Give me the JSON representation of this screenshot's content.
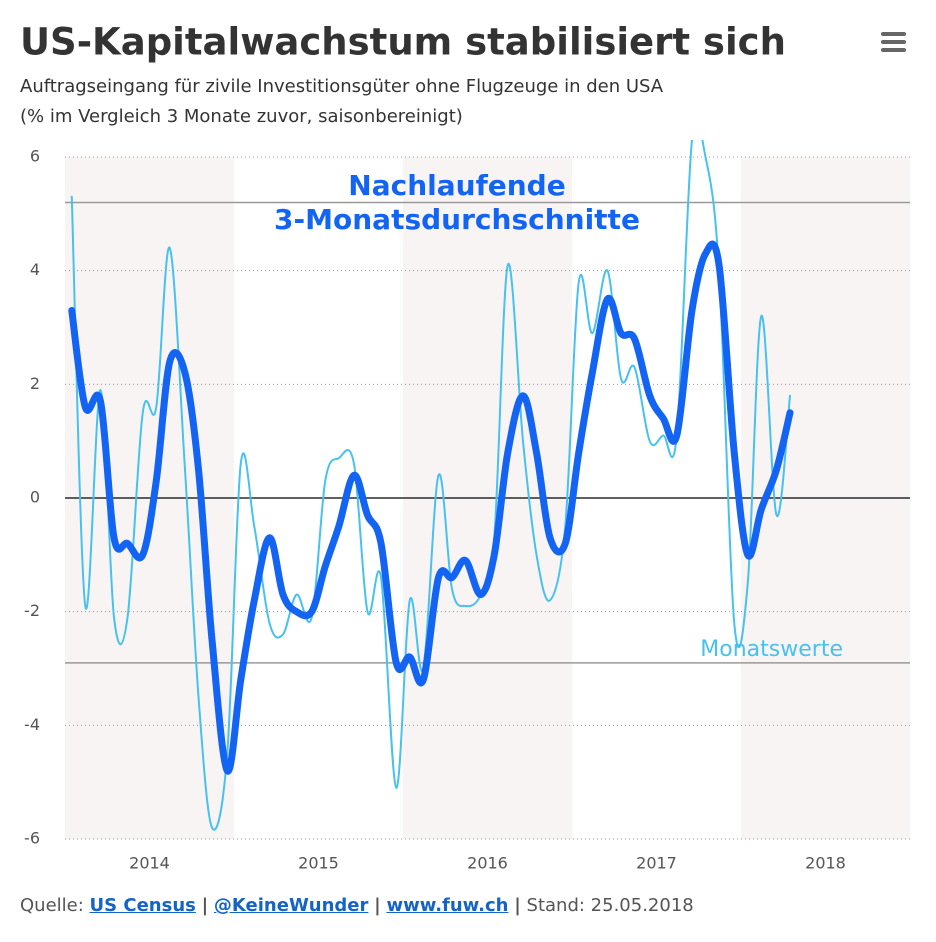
{
  "chart_data": {
    "type": "line",
    "title": "US-Kapitalwachstum stabilisiert sich",
    "subtitle": [
      "Auftragseingang für zivile Investitionsgüter ohne Flugzeuge in den USA",
      "(% im Vergleich 3 Monate zuvor, saisonbereinigt)"
    ],
    "x": [
      2013.54,
      2013.62,
      2013.71,
      2013.79,
      2013.87,
      2013.96,
      2014.04,
      2014.12,
      2014.21,
      2014.29,
      2014.37,
      2014.46,
      2014.54,
      2014.62,
      2014.71,
      2014.79,
      2014.87,
      2014.96,
      2015.04,
      2015.12,
      2015.21,
      2015.29,
      2015.37,
      2015.46,
      2015.54,
      2015.62,
      2015.71,
      2015.79,
      2015.87,
      2015.96,
      2016.04,
      2016.12,
      2016.21,
      2016.29,
      2016.37,
      2016.46,
      2016.54,
      2016.62,
      2016.71,
      2016.79,
      2016.87,
      2016.96,
      2017.04,
      2017.12,
      2017.21,
      2017.29,
      2017.37,
      2017.46,
      2017.54,
      2017.62,
      2017.71,
      2017.79
    ],
    "series": [
      {
        "name": "Monatswerte",
        "color": "#47c1f0",
        "width": 2,
        "values": [
          5.3,
          -1.9,
          1.9,
          -2.1,
          -2.1,
          1.5,
          1.6,
          4.4,
          0.5,
          -3.5,
          -5.8,
          -4.5,
          0.6,
          -0.5,
          -2.2,
          -2.4,
          -1.7,
          -2.1,
          0.3,
          0.7,
          0.6,
          -2.0,
          -1.4,
          -5.1,
          -1.8,
          -3.0,
          0.4,
          -1.6,
          -1.9,
          -1.7,
          -0.7,
          4.1,
          1.0,
          -1.0,
          -1.8,
          -0.5,
          3.8,
          2.9,
          4.0,
          2.1,
          2.3,
          1.0,
          1.1,
          1.1,
          6.3,
          6.0,
          4.0,
          -2.2,
          -1.5,
          3.2,
          -0.3,
          1.8
        ]
      },
      {
        "name": "Nachlaufende 3-Monatsdurchschnitte",
        "color": "#1464f4",
        "width": 7,
        "values": [
          3.3,
          1.6,
          1.7,
          -0.7,
          -0.8,
          -1.0,
          0.3,
          2.4,
          2.2,
          0.5,
          -2.5,
          -4.8,
          -3.2,
          -1.8,
          -0.7,
          -1.7,
          -2.0,
          -2.0,
          -1.2,
          -0.5,
          0.4,
          -0.3,
          -0.8,
          -2.9,
          -2.8,
          -3.2,
          -1.4,
          -1.4,
          -1.1,
          -1.7,
          -1.0,
          0.8,
          1.8,
          0.8,
          -0.7,
          -0.8,
          0.8,
          2.2,
          3.5,
          2.9,
          2.8,
          1.8,
          1.4,
          1.1,
          3.3,
          4.3,
          4.1,
          0.8,
          -1.0,
          -0.2,
          0.5,
          1.5
        ]
      }
    ],
    "annotations": [
      {
        "lines": [
          "Nachlaufende",
          "3-Monatsdurchschnitte"
        ],
        "color": "#1464f4"
      },
      {
        "lines": [
          "Monatswerte"
        ],
        "color": "#47c1f0"
      }
    ],
    "plot_lines": [
      5.2,
      -2.9
    ],
    "plot_bands": [
      [
        2013.5,
        2014.5
      ],
      [
        2015.5,
        2016.5
      ],
      [
        2017.5,
        2018.5
      ]
    ],
    "xlim": [
      2013.5,
      2018.5
    ],
    "xticks": [
      2014,
      2015,
      2016,
      2017,
      2018
    ],
    "ylim": [
      -6,
      6
    ],
    "yticks": [
      6,
      4,
      2,
      0,
      -2,
      -4,
      -6
    ],
    "grid": true
  },
  "footer": {
    "source_label": "Quelle:",
    "links": [
      "US Census",
      "@KeineWunder",
      "www.fuw.ch"
    ],
    "separator": "|",
    "date": "Stand: 25.05.2018"
  }
}
